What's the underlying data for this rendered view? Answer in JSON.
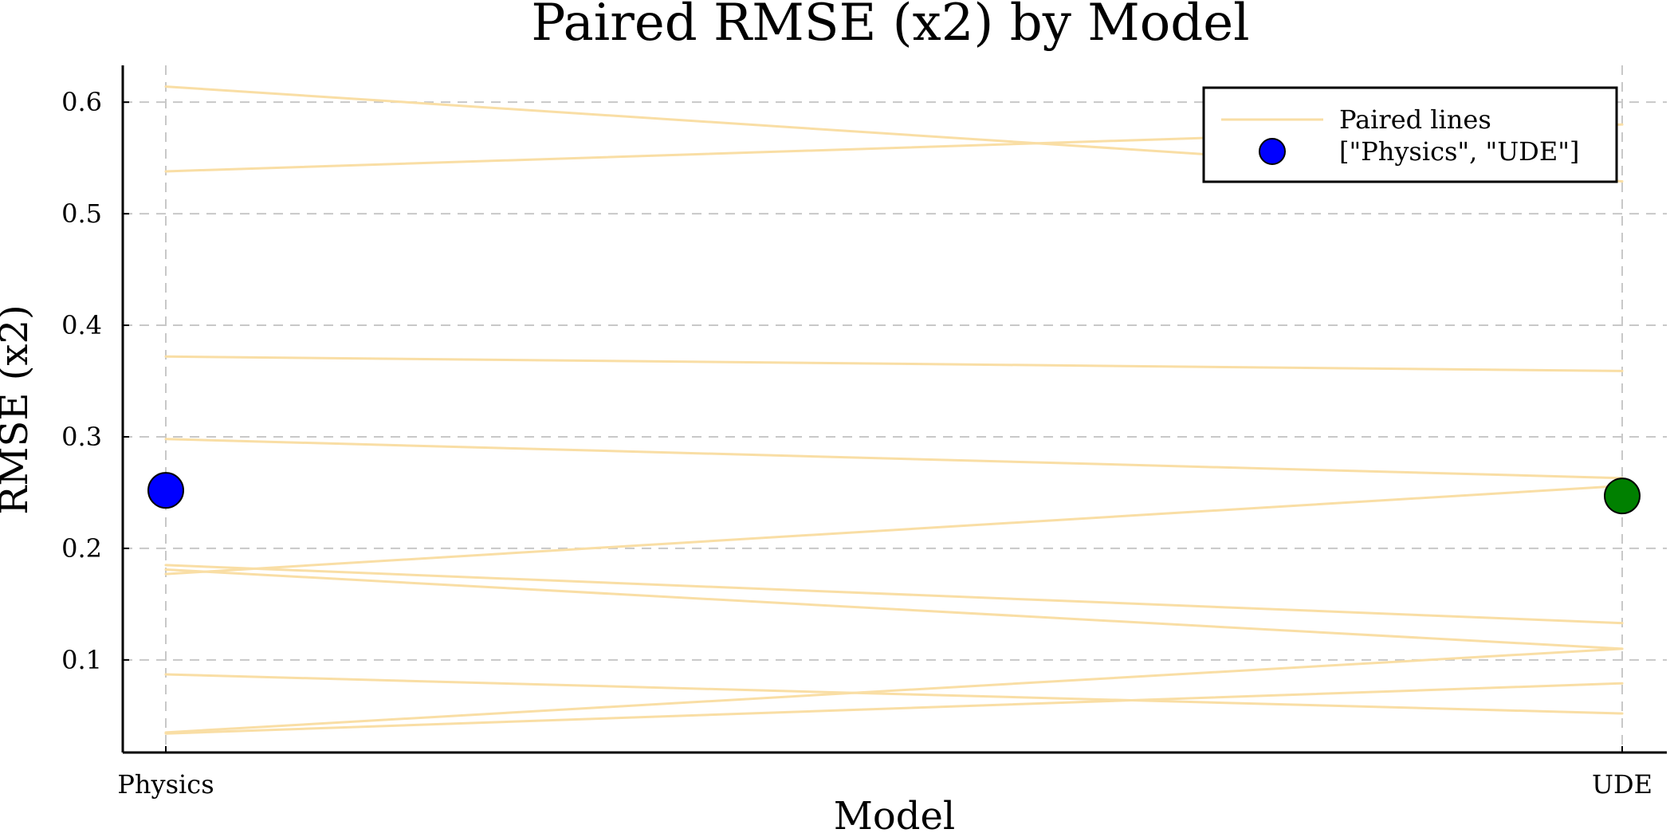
{
  "chart_data": {
    "type": "scatter",
    "title": "Paired RMSE (x2) by Model",
    "xlabel": "Model",
    "ylabel": "RMSE (x2)",
    "categories": [
      "Physics",
      "UDE"
    ],
    "ylim": [
      0.017,
      0.633
    ],
    "yticks": [
      0.1,
      0.2,
      0.3,
      0.4,
      0.5,
      0.6
    ],
    "ytick_labels": [
      "0.1",
      "0.2",
      "0.3",
      "0.4",
      "0.5",
      "0.6"
    ],
    "grid": true,
    "legend_position": "top-right",
    "legend": [
      {
        "label": "Paired lines",
        "kind": "line",
        "color": "#f9dea5"
      },
      {
        "label": "[\"Physics\", \"UDE\"]",
        "kind": "marker",
        "color": "#0000ff"
      }
    ],
    "paired_lines": {
      "name": "Paired lines",
      "color": "#f9dea5",
      "pairs": [
        [
          0.614,
          0.529
        ],
        [
          0.538,
          0.58
        ],
        [
          0.372,
          0.359
        ],
        [
          0.298,
          0.263
        ],
        [
          0.177,
          0.256
        ],
        [
          0.185,
          0.133
        ],
        [
          0.181,
          0.11
        ],
        [
          0.087,
          0.052
        ],
        [
          0.035,
          0.11
        ],
        [
          0.034,
          0.079
        ]
      ]
    },
    "means": {
      "name": "[\"Physics\", \"UDE\"]",
      "values": [
        0.252,
        0.247
      ],
      "colors": [
        "#0000ff",
        "#008000"
      ]
    }
  }
}
